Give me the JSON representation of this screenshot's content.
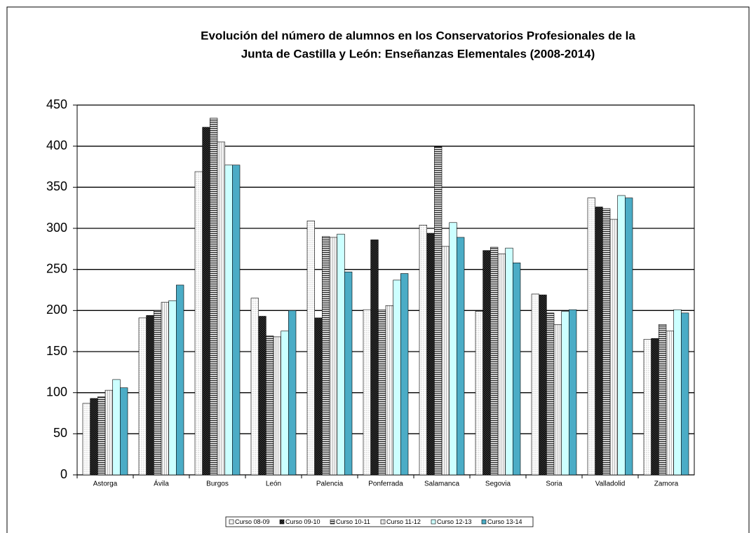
{
  "chart_data": {
    "type": "bar",
    "title": [
      "Evolución del número de alumnos en los Conservatorios Profesionales de la",
      "Junta de Castilla y León: Enseñanzas Elementales (2008-2014)"
    ],
    "categories": [
      "Astorga",
      "Ávila",
      "Burgos",
      "León",
      "Palencia",
      "Ponferrada",
      "Salamanca",
      "Segovia",
      "Soria",
      "Valladolid",
      "Zamora"
    ],
    "series": [
      {
        "name": "Curso 08-09",
        "color": "#ffffff",
        "values": [
          87,
          191,
          369,
          215,
          309,
          201,
          304,
          199,
          220,
          337,
          165
        ]
      },
      {
        "name": "Curso 09-10",
        "color": "#404040",
        "values": [
          93,
          194,
          423,
          193,
          191,
          286,
          294,
          273,
          219,
          326,
          166
        ]
      },
      {
        "name": "Curso 10-11",
        "color": "#d0d0d0",
        "values": [
          95,
          200,
          434,
          169,
          290,
          201,
          399,
          277,
          197,
          324,
          183
        ]
      },
      {
        "name": "Curso 11-12",
        "color": "#f4f4f4",
        "values": [
          103,
          210,
          405,
          168,
          289,
          206,
          278,
          269,
          183,
          311,
          175
        ]
      },
      {
        "name": "Curso 12-13",
        "color": "#ccffff",
        "values": [
          116,
          212,
          377,
          175,
          293,
          237,
          307,
          276,
          199,
          340,
          201
        ]
      },
      {
        "name": "Curso 13-14",
        "color": "#4bacc6",
        "values": [
          106,
          231,
          377,
          200,
          247,
          245,
          289,
          258,
          201,
          337,
          197
        ]
      }
    ],
    "ylim": [
      0,
      450
    ],
    "yticks": [
      0,
      50,
      100,
      150,
      200,
      250,
      300,
      350,
      400,
      450
    ],
    "grid": true,
    "legend": "bottom"
  }
}
